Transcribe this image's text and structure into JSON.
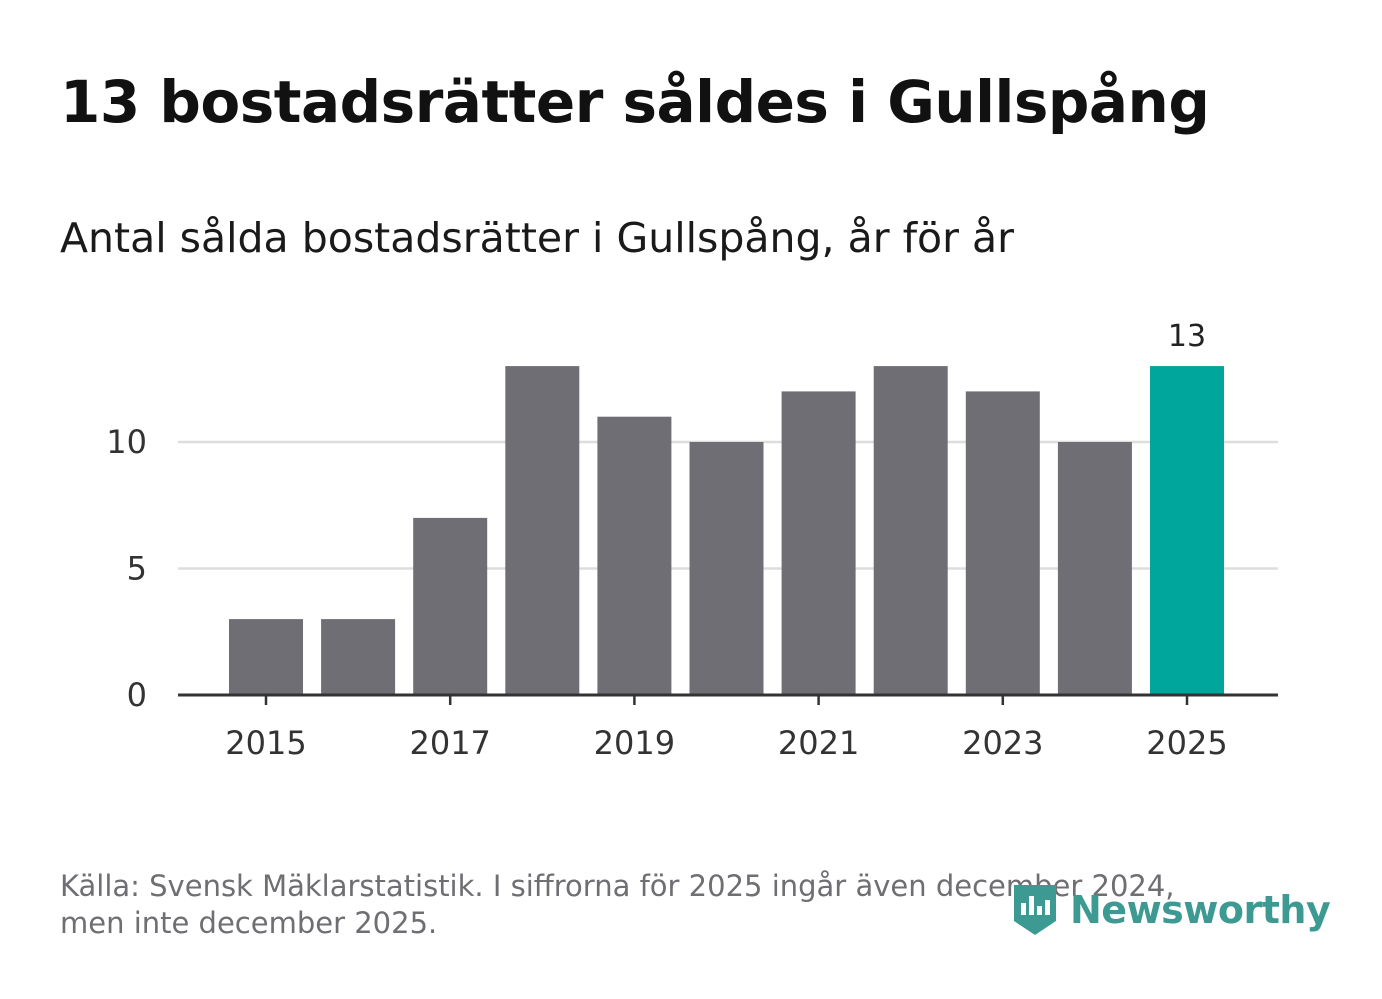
{
  "title": "13 bostadsrätter såldes i Gullspång",
  "subtitle": "Antal sålda bostadsrätter i Gullspång, år för år",
  "footnote": {
    "line1": "Källa: Svensk Mäklarstatistik. I siffrorna för 2025 ingår även december 2024,",
    "line2": "men inte december 2025."
  },
  "brand": {
    "name": "Newsworthy",
    "color": "#3d9a92",
    "icon": "newsworthy-logo-icon"
  },
  "colors": {
    "bar": "#6f6e74",
    "highlight": "#00a59b",
    "grid": "#dddddd",
    "axis": "#333333"
  },
  "chart_data": {
    "type": "bar",
    "title": "Antal sålda bostadsrätter i Gullspång, år för år",
    "xlabel": "",
    "ylabel": "",
    "categories": [
      2015,
      2016,
      2017,
      2018,
      2019,
      2020,
      2021,
      2022,
      2023,
      2024,
      2025
    ],
    "values": [
      3,
      3,
      7,
      13,
      11,
      10,
      12,
      13,
      12,
      10,
      13
    ],
    "highlight_index": 10,
    "highlight_label": "13",
    "ylim": [
      0,
      13
    ],
    "y_ticks": [
      0,
      5,
      10
    ],
    "x_ticks": [
      2015,
      2017,
      2019,
      2021,
      2023,
      2025
    ],
    "grid": true
  }
}
